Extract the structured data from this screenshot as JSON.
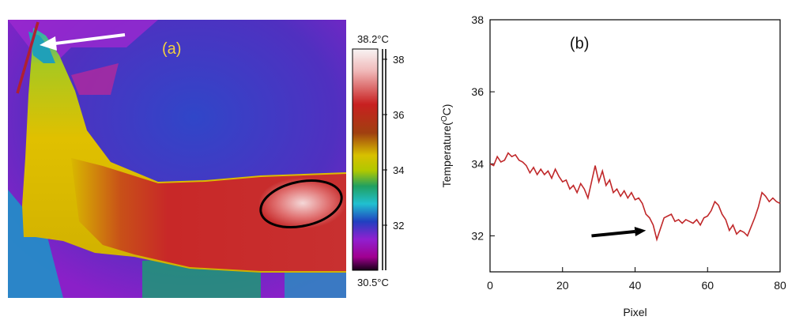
{
  "panel_a": {
    "label": "(a)",
    "scale_max_label": "38.2°C",
    "scale_min_label": "30.5°C",
    "scale_ticks": [
      "38",
      "36",
      "34",
      "32"
    ]
  },
  "chart_data": {
    "type": "line",
    "panel_label": "(b)",
    "xlabel": "Pixel",
    "ylabel_main": "Temperature(",
    "ylabel_sup": "O",
    "ylabel_tail": "C)",
    "xlim": [
      0,
      80
    ],
    "ylim": [
      31,
      38
    ],
    "xticks": [
      0,
      20,
      40,
      60,
      80
    ],
    "yticks": [
      32,
      34,
      36,
      38
    ],
    "grid": false,
    "line_color": "#c0282a",
    "series": [
      {
        "x": [
          0,
          1,
          2,
          3,
          4,
          5,
          6,
          7,
          8,
          9,
          10,
          11,
          12,
          13,
          14,
          15,
          16,
          17,
          18,
          19,
          20,
          21,
          22,
          23,
          24,
          25,
          26,
          27,
          28,
          29,
          30,
          31,
          32,
          33,
          34,
          35,
          36,
          37,
          38,
          39,
          40,
          41,
          42,
          43,
          44,
          45,
          46,
          47,
          48,
          49,
          50,
          51,
          52,
          53,
          54,
          55,
          56,
          57,
          58,
          59,
          60,
          61,
          62,
          63,
          64,
          65,
          66,
          67,
          68,
          69,
          70,
          71,
          72,
          73,
          74,
          75,
          76,
          77,
          78,
          79,
          80
        ],
        "values": [
          34.0,
          33.95,
          34.2,
          34.05,
          34.1,
          34.3,
          34.2,
          34.25,
          34.1,
          34.05,
          33.95,
          33.75,
          33.9,
          33.7,
          33.85,
          33.7,
          33.8,
          33.6,
          33.85,
          33.65,
          33.5,
          33.55,
          33.3,
          33.4,
          33.2,
          33.45,
          33.3,
          33.05,
          33.5,
          33.95,
          33.5,
          33.8,
          33.4,
          33.55,
          33.2,
          33.3,
          33.1,
          33.25,
          33.05,
          33.2,
          33.0,
          33.05,
          32.9,
          32.6,
          32.5,
          32.3,
          31.9,
          32.2,
          32.5,
          32.55,
          32.6,
          32.4,
          32.45,
          32.35,
          32.45,
          32.4,
          32.35,
          32.45,
          32.3,
          32.5,
          32.55,
          32.7,
          32.95,
          32.85,
          32.6,
          32.45,
          32.15,
          32.3,
          32.05,
          32.15,
          32.1,
          32.0,
          32.25,
          32.5,
          32.8,
          33.2,
          33.1,
          32.95,
          33.05,
          32.95,
          32.9
        ]
      }
    ],
    "annotations": [
      {
        "type": "arrow",
        "from": [
          28,
          32.0
        ],
        "to": [
          43,
          32.15
        ]
      }
    ]
  }
}
